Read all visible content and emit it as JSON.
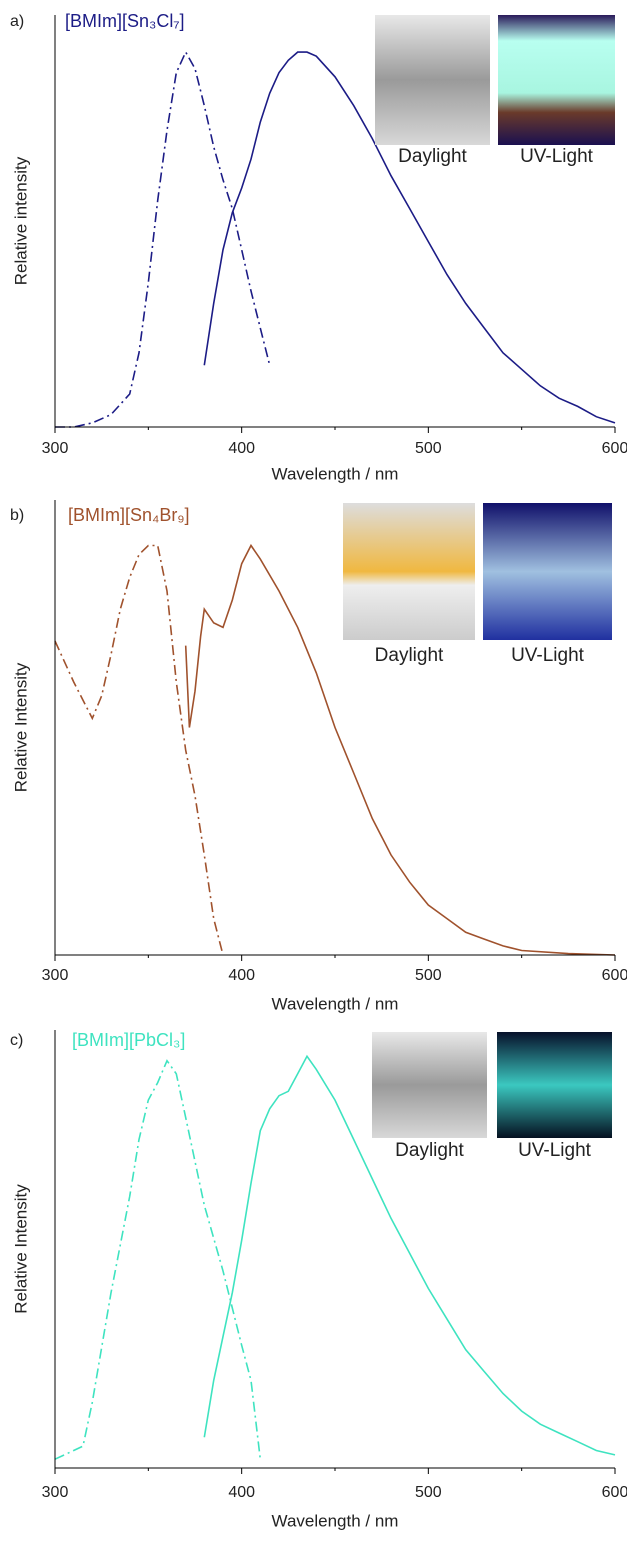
{
  "chart_data": [
    {
      "type": "line",
      "label": "a)",
      "title": "[BMIm][Sn₃Cl₇]",
      "title_color": "#1c1c86",
      "x_label": "Wavelength / nm",
      "y_label": "Relative intensity",
      "xlim": [
        300,
        600
      ],
      "xticks": [
        300,
        400,
        500,
        600
      ],
      "ylim": [
        0,
        1
      ],
      "insets": [
        "Daylight",
        "UV-Light"
      ],
      "series": [
        {
          "color": "#1c1c86",
          "style": "dashdot",
          "x": [
            300,
            310,
            320,
            330,
            340,
            345,
            350,
            355,
            360,
            365,
            370,
            375,
            380,
            385,
            390,
            395,
            400,
            405,
            410,
            415
          ],
          "values": [
            0.0,
            0.0,
            0.01,
            0.03,
            0.08,
            0.18,
            0.35,
            0.55,
            0.72,
            0.86,
            0.91,
            0.87,
            0.78,
            0.68,
            0.6,
            0.53,
            0.43,
            0.33,
            0.24,
            0.15
          ]
        },
        {
          "color": "#1c1c86",
          "style": "solid",
          "x": [
            380,
            385,
            390,
            395,
            400,
            405,
            410,
            415,
            420,
            425,
            430,
            435,
            440,
            450,
            460,
            470,
            480,
            490,
            500,
            510,
            520,
            530,
            540,
            550,
            560,
            570,
            580,
            590,
            600
          ],
          "values": [
            0.15,
            0.3,
            0.43,
            0.52,
            0.58,
            0.65,
            0.74,
            0.81,
            0.86,
            0.89,
            0.91,
            0.91,
            0.9,
            0.85,
            0.78,
            0.7,
            0.61,
            0.53,
            0.45,
            0.37,
            0.3,
            0.24,
            0.18,
            0.14,
            0.1,
            0.07,
            0.05,
            0.025,
            0.01
          ]
        }
      ]
    },
    {
      "type": "line",
      "label": "b)",
      "title": "[BMIm][Sn₄Br₉]",
      "title_color": "#a0522d",
      "x_label": "Wavelength / nm",
      "y_label": "Relative Intensity",
      "xlim": [
        300,
        600
      ],
      "xticks": [
        300,
        400,
        500,
        600
      ],
      "ylim": [
        0,
        1
      ],
      "insets": [
        "Daylight",
        "UV-Light"
      ],
      "series": [
        {
          "color": "#a0522d",
          "style": "dashdot",
          "x": [
            300,
            310,
            320,
            325,
            330,
            335,
            340,
            345,
            350,
            355,
            360,
            365,
            370,
            375,
            380,
            385,
            390
          ],
          "values": [
            0.69,
            0.6,
            0.52,
            0.57,
            0.66,
            0.76,
            0.83,
            0.88,
            0.9,
            0.9,
            0.8,
            0.6,
            0.45,
            0.35,
            0.22,
            0.08,
            0.0
          ]
        },
        {
          "color": "#a0522d",
          "style": "solid",
          "x": [
            370,
            372,
            375,
            378,
            380,
            385,
            390,
            395,
            400,
            405,
            410,
            420,
            430,
            440,
            450,
            460,
            470,
            480,
            490,
            500,
            510,
            520,
            530,
            540,
            550,
            575,
            600
          ],
          "values": [
            0.68,
            0.5,
            0.58,
            0.7,
            0.76,
            0.73,
            0.72,
            0.78,
            0.86,
            0.9,
            0.87,
            0.8,
            0.72,
            0.62,
            0.5,
            0.4,
            0.3,
            0.22,
            0.16,
            0.11,
            0.08,
            0.05,
            0.035,
            0.02,
            0.01,
            0.003,
            0.0
          ]
        }
      ]
    },
    {
      "type": "line",
      "label": "c)",
      "title": "[BMIm][PbCl₃]",
      "title_color": "#3ee3c0",
      "x_label": "Wavelength / nm",
      "y_label": "Relative Intensity",
      "xlim": [
        300,
        600
      ],
      "xticks": [
        300,
        400,
        500,
        600
      ],
      "ylim": [
        0,
        1
      ],
      "insets": [
        "Daylight",
        "UV-Light"
      ],
      "series": [
        {
          "color": "#3ee3c0",
          "style": "dashdot",
          "x": [
            300,
            310,
            315,
            320,
            330,
            340,
            345,
            350,
            355,
            360,
            365,
            370,
            375,
            380,
            390,
            400,
            405,
            410
          ],
          "values": [
            0.02,
            0.04,
            0.05,
            0.15,
            0.4,
            0.62,
            0.75,
            0.84,
            0.88,
            0.93,
            0.9,
            0.8,
            0.7,
            0.6,
            0.45,
            0.28,
            0.2,
            0.02
          ]
        },
        {
          "color": "#3ee3c0",
          "style": "solid",
          "x": [
            380,
            385,
            390,
            395,
            400,
            405,
            410,
            415,
            420,
            425,
            430,
            435,
            440,
            450,
            460,
            470,
            480,
            490,
            500,
            510,
            520,
            530,
            540,
            550,
            560,
            570,
            580,
            590,
            600
          ],
          "values": [
            0.07,
            0.2,
            0.3,
            0.4,
            0.52,
            0.65,
            0.77,
            0.82,
            0.85,
            0.86,
            0.9,
            0.94,
            0.91,
            0.84,
            0.75,
            0.66,
            0.57,
            0.49,
            0.41,
            0.34,
            0.27,
            0.22,
            0.17,
            0.13,
            0.1,
            0.08,
            0.06,
            0.04,
            0.03
          ]
        }
      ]
    }
  ]
}
